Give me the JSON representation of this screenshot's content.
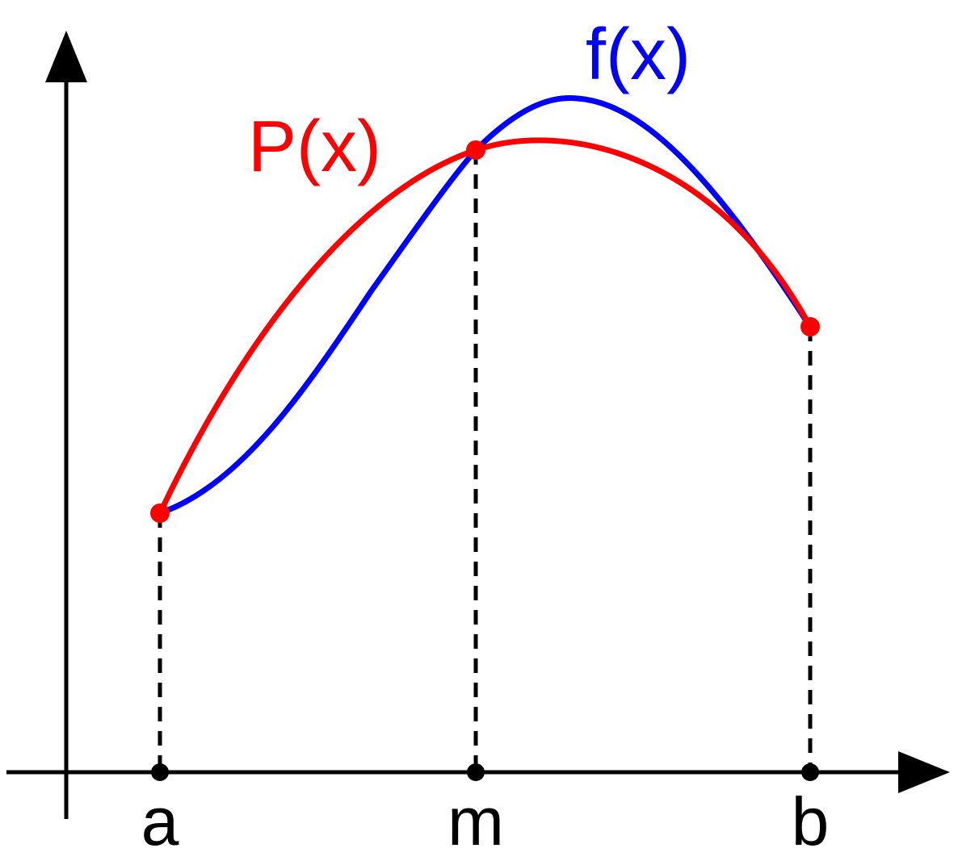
{
  "diagram": {
    "x_labels": {
      "a": "a",
      "m": "m",
      "b": "b"
    },
    "curve_labels": {
      "f": "f(x)",
      "p": "P(x)"
    },
    "colors": {
      "axes": "#000000",
      "f_curve": "#0000ff",
      "p_curve": "#ff0000",
      "guides": "#000000"
    }
  }
}
